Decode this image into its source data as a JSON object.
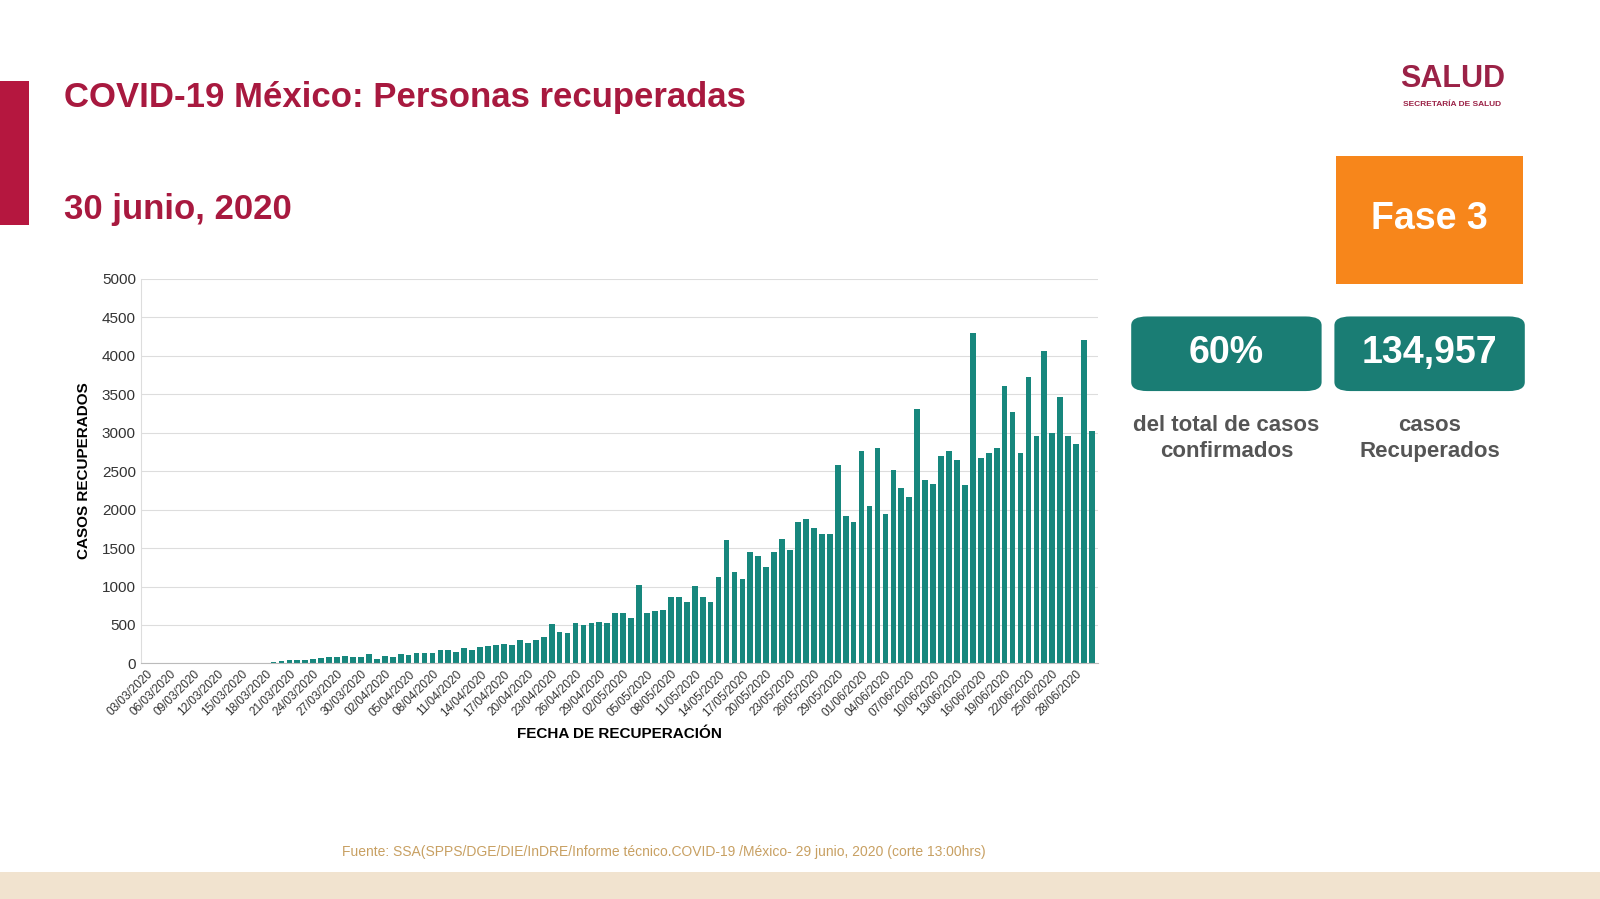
{
  "chart_data": {
    "type": "bar",
    "title": "COVID-19 México: Personas recuperadas",
    "subtitle": "30 junio, 2020",
    "x_label": "FECHA DE RECUPERACIÓN",
    "y_label": "CASOS RECUPERADOS",
    "categories": [
      "03/03/2020",
      null,
      null,
      "06/03/2020",
      null,
      null,
      "09/03/2020",
      null,
      null,
      "12/03/2020",
      null,
      null,
      "15/03/2020",
      null,
      null,
      "18/03/2020",
      null,
      null,
      "21/03/2020",
      null,
      null,
      "24/03/2020",
      null,
      null,
      "27/03/2020",
      null,
      null,
      "30/03/2020",
      null,
      null,
      "02/04/2020",
      null,
      null,
      "05/04/2020",
      null,
      null,
      "08/04/2020",
      null,
      null,
      "11/04/2020",
      null,
      null,
      "14/04/2020",
      null,
      null,
      "17/04/2020",
      null,
      null,
      "20/04/2020",
      null,
      null,
      "23/04/2020",
      null,
      null,
      "26/04/2020",
      null,
      null,
      "29/04/2020",
      null,
      null,
      "02/05/2020",
      null,
      null,
      "05/05/2020",
      null,
      null,
      "08/05/2020",
      null,
      null,
      "11/05/2020",
      null,
      null,
      "14/05/2020",
      null,
      null,
      "17/05/2020",
      null,
      null,
      "20/05/2020",
      null,
      null,
      "23/05/2020",
      null,
      null,
      "26/05/2020",
      null,
      null,
      "29/05/2020",
      null,
      null,
      "01/06/2020",
      null,
      null,
      "04/06/2020",
      null,
      null,
      "07/06/2020",
      null,
      null,
      "10/06/2020",
      null,
      null,
      "13/06/2020",
      null,
      null,
      "16/06/2020",
      null,
      null,
      "19/06/2020",
      null,
      null,
      "22/06/2020",
      null,
      null,
      "25/06/2020",
      null,
      null,
      "28/06/2020",
      null,
      null
    ],
    "values": [
      8,
      3,
      5,
      2,
      3,
      5,
      8,
      2,
      3,
      4,
      6,
      5,
      10,
      8,
      10,
      10,
      15,
      30,
      45,
      40,
      50,
      60,
      70,
      80,
      80,
      100,
      80,
      90,
      120,
      60,
      100,
      80,
      120,
      110,
      130,
      130,
      140,
      170,
      170,
      150,
      200,
      170,
      220,
      230,
      240,
      250,
      240,
      300,
      260,
      310,
      350,
      510,
      410,
      400,
      520,
      500,
      520,
      540,
      530,
      650,
      660,
      590,
      1020,
      660,
      680,
      700,
      870,
      860,
      800,
      1010,
      870,
      800,
      1130,
      1600,
      1190,
      1100,
      1450,
      1390,
      1250,
      1450,
      1620,
      1470,
      1840,
      1880,
      1760,
      1680,
      1680,
      2580,
      1920,
      1840,
      2760,
      2050,
      2800,
      1940,
      2510,
      2280,
      2160,
      3310,
      2380,
      2330,
      2700,
      2760,
      2640,
      2320,
      4300,
      2670,
      2740,
      2800,
      3600,
      3270,
      2730,
      3720,
      2960,
      4060,
      2990,
      3460,
      2960,
      2850,
      4200,
      3020
    ],
    "color": "#17877d",
    "ylim": [
      0,
      5000
    ],
    "yticks": [
      0,
      500,
      1000,
      1500,
      2000,
      2500,
      3000,
      3500,
      4000,
      4500,
      5000
    ],
    "grid": true
  },
  "header": {
    "logo": "SALUD",
    "logo_subtitle": "SECRETARÍA DE SALUD",
    "phase": "Fase 3"
  },
  "stats": [
    {
      "value": "60%",
      "caption": [
        "del total de casos",
        "confirmados"
      ]
    },
    {
      "value": "134,957",
      "caption": [
        "casos",
        "Recuperados"
      ]
    }
  ],
  "footer": "Fuente: SSA(SPPS/DGE/DIE/InDRE/Informe técnico.COVID-19 /México- 29 junio, 2020 (corte 13:00hrs)"
}
